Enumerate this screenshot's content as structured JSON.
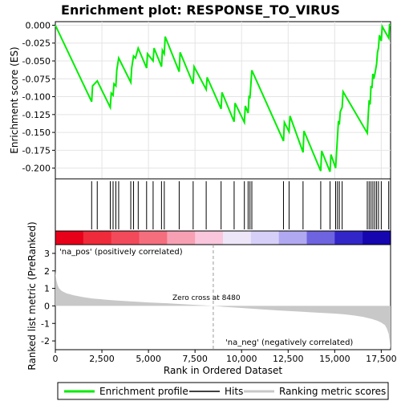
{
  "chart_data": [
    {
      "type": "line",
      "title": "Enrichment plot: RESPONSE_TO_VIRUS",
      "xlabel": "",
      "ylabel": "Enrichment score (ES)",
      "xlim": [
        0,
        18000
      ],
      "ylim": [
        -0.215,
        0.005
      ],
      "yticks": [
        0.0,
        -0.025,
        -0.05,
        -0.075,
        -0.1,
        -0.125,
        -0.15,
        -0.175,
        -0.2
      ],
      "ytick_labels": [
        "0.000",
        "-0.025",
        "-0.050",
        "-0.075",
        "-0.100",
        "-0.125",
        "-0.150",
        "-0.175",
        "-0.200"
      ],
      "grid": true,
      "series": [
        {
          "name": "Enrichment profile",
          "color": "#00ee00",
          "x": [
            0,
            1950,
            2000,
            2250,
            2950,
            3000,
            3100,
            3150,
            3250,
            3300,
            3400,
            4050,
            4100,
            4200,
            4300,
            4450,
            4900,
            4950,
            5250,
            5300,
            5700,
            5750,
            5850,
            5900,
            6650,
            6700,
            7400,
            7450,
            8100,
            8150,
            8900,
            8950,
            9600,
            9650,
            10150,
            10200,
            10350,
            10400,
            10450,
            10500,
            10550,
            12250,
            12300,
            12550,
            12600,
            13300,
            13350,
            14250,
            14300,
            14750,
            14800,
            15050,
            15100,
            15150,
            15200,
            15250,
            15300,
            15400,
            15450,
            16750,
            16800,
            16850,
            16900,
            16950,
            17000,
            17050,
            17100,
            17150,
            17200,
            17250,
            17300,
            17350,
            17400,
            17500,
            17550,
            17900,
            17950
          ],
          "y": [
            0.0,
            -0.107,
            -0.085,
            -0.078,
            -0.115,
            -0.095,
            -0.098,
            -0.082,
            -0.085,
            -0.063,
            -0.046,
            -0.08,
            -0.06,
            -0.043,
            -0.046,
            -0.032,
            -0.06,
            -0.04,
            -0.05,
            -0.032,
            -0.058,
            -0.035,
            -0.04,
            -0.016,
            -0.065,
            -0.038,
            -0.082,
            -0.058,
            -0.09,
            -0.073,
            -0.117,
            -0.094,
            -0.135,
            -0.109,
            -0.136,
            -0.113,
            -0.123,
            -0.1,
            -0.101,
            -0.083,
            -0.063,
            -0.162,
            -0.136,
            -0.149,
            -0.127,
            -0.178,
            -0.148,
            -0.204,
            -0.176,
            -0.205,
            -0.181,
            -0.2,
            -0.177,
            -0.157,
            -0.134,
            -0.139,
            -0.121,
            -0.115,
            -0.093,
            -0.151,
            -0.127,
            -0.105,
            -0.111,
            -0.085,
            -0.088,
            -0.068,
            -0.075,
            -0.069,
            -0.062,
            -0.054,
            -0.038,
            -0.032,
            -0.014,
            -0.022,
            -0.002,
            -0.018,
            0.002
          ]
        }
      ],
      "hits": [
        1950,
        2250,
        2950,
        3100,
        3250,
        3400,
        4050,
        4200,
        4450,
        4900,
        5250,
        5700,
        5850,
        6650,
        7400,
        8100,
        8900,
        9600,
        10150,
        10350,
        10450,
        10550,
        12250,
        12550,
        13300,
        14250,
        14750,
        15050,
        15150,
        15250,
        15400,
        16750,
        16850,
        16950,
        17050,
        17150,
        17250,
        17350,
        17500,
        17900
      ]
    },
    {
      "type": "area",
      "xlabel": "Rank in Ordered Dataset",
      "ylabel": "Ranked list metric (PreRanked)",
      "xlim": [
        0,
        18000
      ],
      "ylim": [
        -2.5,
        3.5
      ],
      "xticks": [
        0,
        2500,
        5000,
        7500,
        10000,
        12500,
        15000,
        17500
      ],
      "xtick_labels": [
        "0",
        "2,500",
        "5,000",
        "7,500",
        "10,000",
        "12,500",
        "15,000",
        "17,500"
      ],
      "yticks": [
        3,
        2,
        1,
        0,
        -1,
        -2
      ],
      "ytick_labels": [
        "3",
        "2",
        "1",
        "0",
        "-1",
        "-2"
      ],
      "series": [
        {
          "name": "Ranking metric scores",
          "color": "#c8c8c8",
          "x": [
            0,
            20,
            60,
            120,
            200,
            350,
            600,
            1000,
            1500,
            2000,
            3000,
            4000,
            5000,
            6000,
            7000,
            8000,
            8480,
            9000,
            10000,
            11000,
            12000,
            13000,
            14000,
            15000,
            15500,
            16000,
            16500,
            17000,
            17300,
            17500,
            17700,
            17800,
            17900,
            17950,
            17999
          ],
          "y": [
            2.0,
            1.75,
            1.45,
            1.2,
            1.0,
            0.85,
            0.72,
            0.6,
            0.5,
            0.42,
            0.33,
            0.26,
            0.2,
            0.15,
            0.09,
            0.03,
            0.0,
            -0.05,
            -0.12,
            -0.19,
            -0.26,
            -0.32,
            -0.38,
            -0.44,
            -0.48,
            -0.54,
            -0.62,
            -0.75,
            -0.85,
            -0.95,
            -1.1,
            -1.3,
            -1.6,
            -2.0,
            -2.5
          ]
        }
      ],
      "annotations": [
        {
          "text": "'na_pos' (positively correlated)",
          "color": "#cc0000"
        },
        {
          "text": "Zero cross at 8480",
          "color": "#000000"
        },
        {
          "text": "'na_neg' (negatively correlated)",
          "color": "#0000cc"
        }
      ],
      "zero_cross": 8480
    }
  ],
  "legend": {
    "items": [
      {
        "label": "Enrichment profile",
        "color": "#00ee00"
      },
      {
        "label": "Hits",
        "color": "#000000"
      },
      {
        "label": "Ranking metric scores",
        "color": "#c8c8c8"
      }
    ]
  },
  "heat_band": {
    "colors": [
      "#e8001a",
      "#ef2a3a",
      "#f24a5a",
      "#f56e7e",
      "#f7a0b4",
      "#f9c6dc",
      "#ece6f8",
      "#d6d0f8",
      "#b0a8f0",
      "#6e64e0",
      "#3226c8",
      "#1606b0"
    ]
  }
}
